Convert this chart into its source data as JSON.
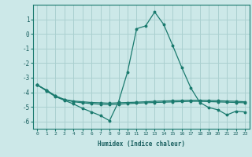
{
  "xlabel": "Humidex (Indice chaleur)",
  "background_color": "#cce8e8",
  "grid_color": "#aad0d0",
  "line_color": "#1a7a6e",
  "x": [
    0,
    1,
    2,
    3,
    4,
    5,
    6,
    7,
    8,
    9,
    10,
    11,
    12,
    13,
    14,
    15,
    16,
    17,
    18,
    19,
    20,
    21,
    22,
    23
  ],
  "series1": [
    -3.5,
    -3.9,
    -4.3,
    -4.55,
    -4.8,
    -5.1,
    -5.35,
    -5.6,
    -5.95,
    -4.65,
    -2.6,
    0.35,
    0.55,
    1.5,
    0.65,
    -0.8,
    -2.3,
    -3.7,
    -4.7,
    -5.05,
    -5.2,
    -5.55,
    -5.3,
    -5.35
  ],
  "series2": [
    -3.5,
    -3.85,
    -4.25,
    -4.5,
    -4.6,
    -4.65,
    -4.7,
    -4.72,
    -4.75,
    -4.72,
    -4.7,
    -4.68,
    -4.65,
    -4.62,
    -4.6,
    -4.58,
    -4.56,
    -4.55,
    -4.55,
    -4.56,
    -4.58,
    -4.6,
    -4.62,
    -4.65
  ],
  "series3": [
    -3.5,
    -3.85,
    -4.25,
    -4.5,
    -4.65,
    -4.72,
    -4.78,
    -4.82,
    -4.85,
    -4.82,
    -4.78,
    -4.75,
    -4.72,
    -4.7,
    -4.68,
    -4.66,
    -4.64,
    -4.62,
    -4.62,
    -4.64,
    -4.66,
    -4.68,
    -4.7,
    -4.72
  ],
  "ylim": [
    -6.5,
    2.0
  ],
  "xlim": [
    -0.5,
    23.5
  ],
  "yticks": [
    -6,
    -5,
    -4,
    -3,
    -2,
    -1,
    0,
    1
  ],
  "xticks": [
    0,
    1,
    2,
    3,
    4,
    5,
    6,
    7,
    8,
    9,
    10,
    11,
    12,
    13,
    14,
    15,
    16,
    17,
    18,
    19,
    20,
    21,
    22,
    23
  ]
}
